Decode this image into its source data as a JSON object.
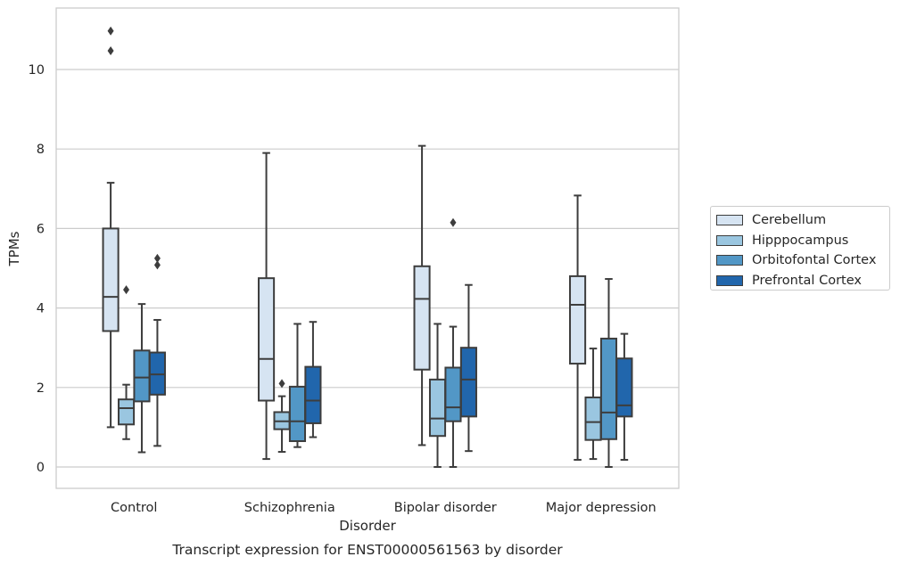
{
  "chart_data": {
    "type": "box",
    "caption": "Transcript expression for ENST00000561563 by disorder",
    "xlabel": "Disorder",
    "ylabel": "TPMs",
    "ylim": [
      -0.5,
      11.5
    ],
    "yticks": [
      0,
      2,
      4,
      6,
      8,
      10
    ],
    "grid": "horizontal",
    "legend_position": "right",
    "categories": [
      "Control",
      "Schizophrenia",
      "Bipolar disorder",
      "Major depression"
    ],
    "series": [
      {
        "name": "Cerebellum",
        "color": "#d6e4f2",
        "boxes": [
          {
            "whisker_low": 1.0,
            "q1": 3.42,
            "median": 4.28,
            "q3": 6.0,
            "whisker_high": 7.15,
            "outliers": [
              10.47,
              10.97
            ]
          },
          {
            "whisker_low": 0.2,
            "q1": 1.67,
            "median": 2.72,
            "q3": 4.75,
            "whisker_high": 7.9,
            "outliers": []
          },
          {
            "whisker_low": 0.55,
            "q1": 2.45,
            "median": 4.23,
            "q3": 5.05,
            "whisker_high": 8.08,
            "outliers": []
          },
          {
            "whisker_low": 0.18,
            "q1": 2.6,
            "median": 4.08,
            "q3": 4.8,
            "whisker_high": 6.83,
            "outliers": []
          }
        ]
      },
      {
        "name": "Hipppocampus",
        "color": "#9ac6e0",
        "boxes": [
          {
            "whisker_low": 0.7,
            "q1": 1.07,
            "median": 1.48,
            "q3": 1.7,
            "whisker_high": 2.07,
            "outliers": [
              4.46
            ]
          },
          {
            "whisker_low": 0.38,
            "q1": 0.95,
            "median": 1.15,
            "q3": 1.38,
            "whisker_high": 1.78,
            "outliers": [
              2.1
            ]
          },
          {
            "whisker_low": 0.0,
            "q1": 0.78,
            "median": 1.22,
            "q3": 2.2,
            "whisker_high": 3.6,
            "outliers": []
          },
          {
            "whisker_low": 0.2,
            "q1": 0.68,
            "median": 1.13,
            "q3": 1.75,
            "whisker_high": 2.98,
            "outliers": []
          }
        ]
      },
      {
        "name": "Orbitofontal Cortex",
        "color": "#5297c6",
        "boxes": [
          {
            "whisker_low": 0.37,
            "q1": 1.65,
            "median": 2.25,
            "q3": 2.93,
            "whisker_high": 4.1,
            "outliers": []
          },
          {
            "whisker_low": 0.5,
            "q1": 0.65,
            "median": 1.15,
            "q3": 2.02,
            "whisker_high": 3.6,
            "outliers": []
          },
          {
            "whisker_low": 0.0,
            "q1": 1.15,
            "median": 1.5,
            "q3": 2.5,
            "whisker_high": 3.53,
            "outliers": [
              6.15
            ]
          },
          {
            "whisker_low": 0.0,
            "q1": 0.7,
            "median": 1.37,
            "q3": 3.23,
            "whisker_high": 4.73,
            "outliers": []
          }
        ]
      },
      {
        "name": "Prefrontal Cortex",
        "color": "#2166ac",
        "boxes": [
          {
            "whisker_low": 0.53,
            "q1": 1.82,
            "median": 2.33,
            "q3": 2.88,
            "whisker_high": 3.7,
            "outliers": [
              5.08,
              5.25
            ]
          },
          {
            "whisker_low": 0.75,
            "q1": 1.1,
            "median": 1.67,
            "q3": 2.52,
            "whisker_high": 3.65,
            "outliers": []
          },
          {
            "whisker_low": 0.4,
            "q1": 1.27,
            "median": 2.2,
            "q3": 3.0,
            "whisker_high": 4.58,
            "outliers": []
          },
          {
            "whisker_low": 0.18,
            "q1": 1.27,
            "median": 1.55,
            "q3": 2.73,
            "whisker_high": 3.35,
            "outliers": []
          }
        ]
      }
    ]
  }
}
